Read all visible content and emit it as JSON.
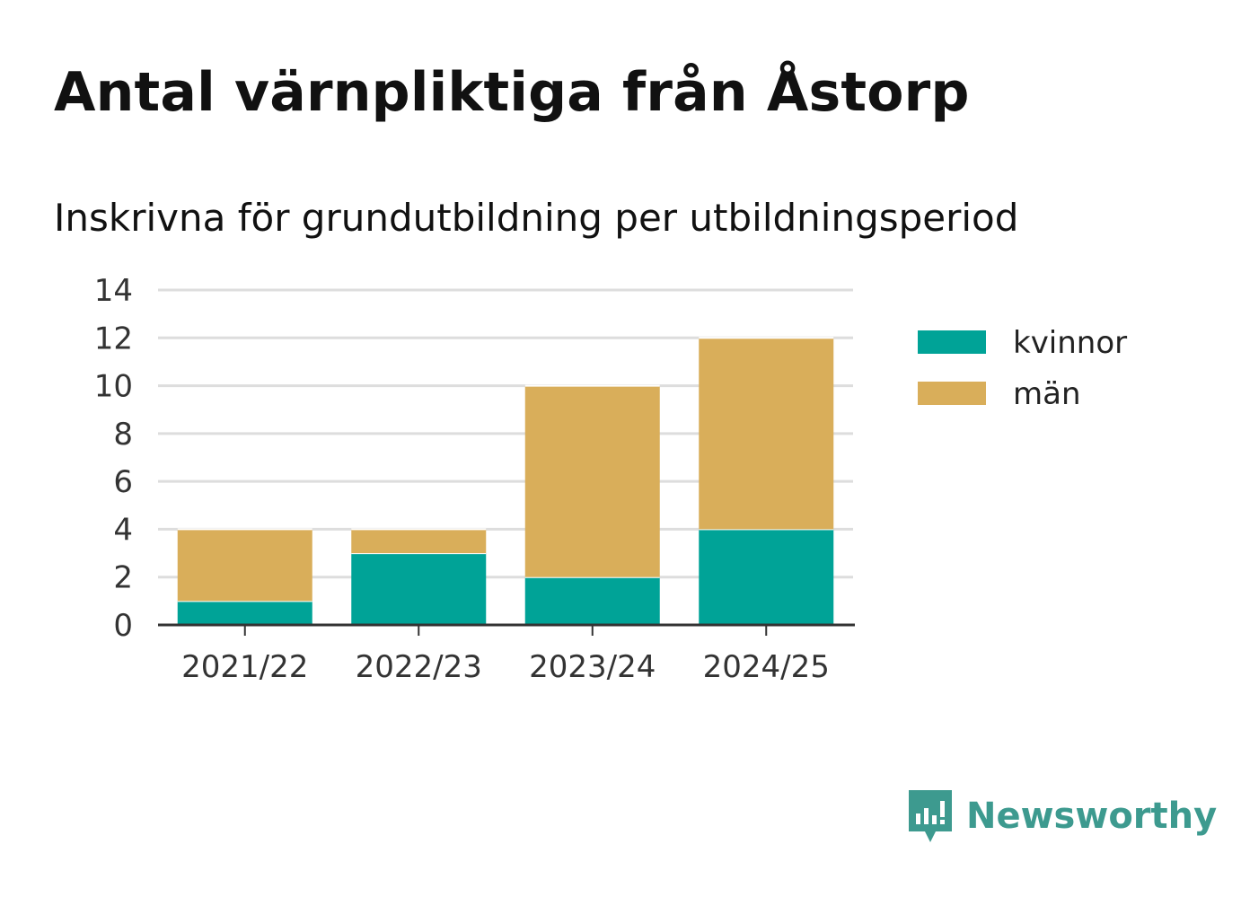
{
  "title": "Antal värnpliktiga från Åstorp",
  "subtitle": "Inskrivna för grundutbildning per utbildningsperiod",
  "brand": "Newsworthy",
  "colors": {
    "kvinnor": "#00a397",
    "man": "#d9ae5a",
    "grid": "#dddddd",
    "axis": "#333333",
    "brand": "#3d9a8f"
  },
  "chart_data": {
    "type": "bar",
    "stacked": true,
    "categories": [
      "2021/22",
      "2022/23",
      "2023/24",
      "2024/25"
    ],
    "series": [
      {
        "name": "kvinnor",
        "values": [
          1,
          3,
          2,
          4
        ]
      },
      {
        "name": "män",
        "values": [
          3,
          1,
          8,
          8
        ]
      }
    ],
    "ylim": [
      0,
      14
    ],
    "yticks": [
      0,
      2,
      4,
      6,
      8,
      10,
      12,
      14
    ],
    "grid": true,
    "legend_position": "right"
  }
}
